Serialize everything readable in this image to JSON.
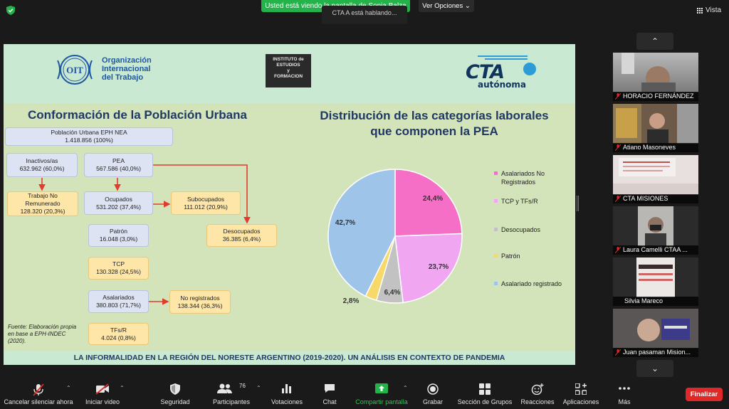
{
  "topbar": {
    "share_banner": "Usted está viendo la pantalla de Sonia Balza",
    "view_options": "Ver Opciones",
    "talking": "CTA A está hablando...",
    "vista_label": "Vista"
  },
  "slide": {
    "oit_text": [
      "Organización",
      "Internacional",
      "del Trabajo"
    ],
    "oit_initials": "OIT",
    "institute_lines": [
      "INSTITUTO de",
      "ESTUDIOS",
      "y",
      "FORMACION"
    ],
    "cta_word": "CTA",
    "cta_sub": "autónoma",
    "left_title": "Conformación de la Población Urbana",
    "right_title_line1": "Distribución de las categorías laborales",
    "right_title_line2": "que componen la PEA",
    "boxes": {
      "poblacion": {
        "label": "Población Urbana EPH NEA",
        "value": "1.418.856 (100%)"
      },
      "inactivos": {
        "label": "Inactivos/as",
        "value": "632.962 (60,0%)"
      },
      "pea": {
        "label": "PEA",
        "value": "567.586 (40,0%)"
      },
      "trabajo": {
        "label1": "Trabajo No",
        "label2": "Remunerado",
        "value": "128.320 (20,3%)"
      },
      "ocupados": {
        "label": "Ocupados",
        "value": "531.202 (37,4%)"
      },
      "subocupados": {
        "label": "Subocupados",
        "value": "111.012 (20,9%)"
      },
      "patron": {
        "label": "Patrón",
        "value": "16.048 (3,0%)"
      },
      "desocupados": {
        "label": "Desocupados",
        "value": "36.385 (6,4%)"
      },
      "tcp": {
        "label": "TCP",
        "value": "130.328 (24,5%)"
      },
      "asalariados": {
        "label": "Asalariados",
        "value": "380.803 (71,7%)"
      },
      "noregistrados": {
        "label": "No registrados",
        "value": "138.344 (36,3%)"
      },
      "tfs": {
        "label": "TFs/R",
        "value": "4.024 (0,8%)"
      }
    },
    "fuente": "Fuente: Elaboración propia en base a EPH-INDEC (2020).",
    "bottom_text": "LA INFORMALIDAD EN LA REGIÓN DEL NORESTE ARGENTINO (2019-2020). UN ANÁLISIS EN CONTEXTO DE PANDEMIA",
    "legend": [
      "Asalariados No Registrados",
      "TCP y TFs/R",
      "Desocupados",
      "Patrón",
      "Asalariado registrado"
    ]
  },
  "chart_data": {
    "type": "pie",
    "title": "Distribución de las categorías laborales que componen la PEA",
    "slices": [
      {
        "label": "Asalariados No Registrados",
        "value": 24.4,
        "display": "24,4%",
        "color": "#f56fc6"
      },
      {
        "label": "TCP y TFs/R",
        "value": 23.7,
        "display": "23,7%",
        "color": "#f1a6f2"
      },
      {
        "label": "Desocupados",
        "value": 6.4,
        "display": "6,4%",
        "color": "#c2c2c2"
      },
      {
        "label": "Patrón",
        "value": 2.8,
        "display": "2,8%",
        "color": "#f6d86b"
      },
      {
        "label": "Asalariado registrado",
        "value": 42.7,
        "display": "42,7%",
        "color": "#9fc4ea"
      }
    ],
    "legend_position": "right"
  },
  "participants": [
    {
      "name": "HORACIO FERNÁNDEZ"
    },
    {
      "name": "Atiano Masoneves"
    },
    {
      "name": "CTA MISIONES"
    },
    {
      "name": "Laura Camelli CTAA ..."
    },
    {
      "name": "Silvia Mareco"
    },
    {
      "name": "Juan pasaman Mision..."
    }
  ],
  "participant_count": "76",
  "toolbar": {
    "mute": "Cancelar silenciar ahora",
    "video": "Iniciar video",
    "security": "Seguridad",
    "participants": "Participantes",
    "polls": "Votaciones",
    "chat": "Chat",
    "share": "Compartir pantalla",
    "record": "Grabar",
    "rooms": "Sección de Grupos",
    "reactions": "Reacciones",
    "apps": "Aplicaciones",
    "more": "Más",
    "end": "Finalizar"
  },
  "colors": {
    "green": "#24b24a",
    "end": "#e02828",
    "titleBlue": "#1f3864"
  }
}
